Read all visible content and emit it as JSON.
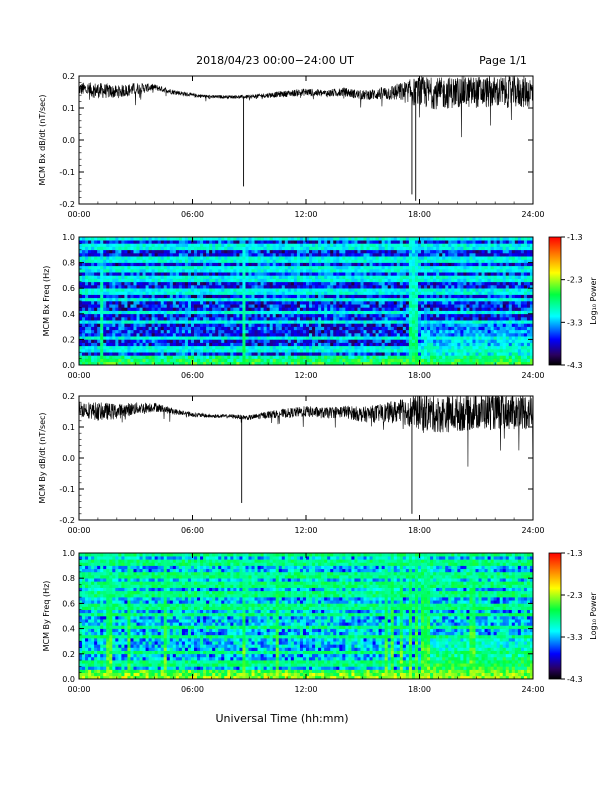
{
  "header": {
    "title": "2018/04/23  00:00−24:00 UT",
    "page": "Page 1/1"
  },
  "footer": {
    "xlabel": "Universal Time (hh:mm)"
  },
  "colorbar": {
    "label": "Log₁₀ Power",
    "ticks": [
      "-1.3",
      "-2.3",
      "-3.3",
      "-4.3"
    ],
    "colormap": "jet"
  },
  "x_ticks": [
    "00:00",
    "06:00",
    "12:00",
    "18:00",
    "24:00"
  ],
  "chart_data": [
    {
      "type": "line",
      "ylabel": "MCM Bx dB/dt (nT/sec)",
      "yticks": [
        "0.2",
        "0.1",
        "0.0",
        "-0.1",
        "-0.2"
      ],
      "xlim_hours": [
        0,
        24
      ],
      "ylim": [
        -0.2,
        0.2
      ],
      "series": [
        {
          "color": "#000000",
          "x": [
            0,
            1,
            2,
            3,
            4,
            5,
            6,
            7,
            8,
            9,
            10,
            11,
            12,
            13,
            14,
            15,
            16,
            17,
            18,
            19,
            20,
            21,
            22,
            23,
            24
          ],
          "y": [
            0.16,
            0.155,
            0.15,
            0.16,
            0.165,
            0.15,
            0.14,
            0.135,
            0.135,
            0.135,
            0.14,
            0.145,
            0.15,
            0.145,
            0.15,
            0.14,
            0.145,
            0.15,
            0.15,
            0.145,
            0.15,
            0.15,
            0.15,
            0.15,
            0.15
          ],
          "spread": [
            0.02,
            0.025,
            0.02,
            0.02,
            0.01,
            0.008,
            0.006,
            0.005,
            0.005,
            0.006,
            0.008,
            0.01,
            0.012,
            0.012,
            0.014,
            0.015,
            0.02,
            0.03,
            0.05,
            0.05,
            0.05,
            0.05,
            0.05,
            0.05,
            0.05
          ]
        }
      ],
      "spikes": [
        {
          "x": 8.7,
          "y": -0.145
        },
        {
          "x": 17.6,
          "y": -0.17
        },
        {
          "x": 17.8,
          "y": -0.19
        }
      ]
    },
    {
      "type": "heatmap",
      "ylabel": "MCM Bx Freq (Hz)",
      "yticks": [
        "1.0",
        "0.8",
        "0.6",
        "0.4",
        "0.2",
        "0.0"
      ],
      "xlim_hours": [
        0,
        24
      ],
      "ylim": [
        0,
        1
      ],
      "zlim": [
        -4.3,
        -1.3
      ],
      "base_level": -3.6,
      "noise_level": -3.9,
      "harmonic_lines_hz": [
        0.05,
        0.1,
        0.15,
        0.2,
        0.25,
        0.3,
        0.35,
        0.4,
        0.45,
        0.5,
        0.55,
        0.6,
        0.65,
        0.7,
        0.75,
        0.8,
        0.85,
        0.9,
        0.95,
        1.0
      ],
      "harmonic_level": -3.1,
      "lowfreq_level": -2.6,
      "vertical_events_hours": [
        1.2,
        8.7,
        17.6,
        17.75
      ],
      "storm_onset_hours": 18.0,
      "storm_level": -2.9
    },
    {
      "type": "line",
      "ylabel": "MCM By dB/dt (nT/sec)",
      "yticks": [
        "0.2",
        "0.1",
        "0.0",
        "-0.1",
        "-0.2"
      ],
      "xlim_hours": [
        0,
        24
      ],
      "ylim": [
        -0.2,
        0.2
      ],
      "series": [
        {
          "color": "#000000",
          "x": [
            0,
            1,
            2,
            3,
            4,
            5,
            6,
            7,
            8,
            9,
            10,
            11,
            12,
            13,
            14,
            15,
            16,
            17,
            18,
            19,
            20,
            21,
            22,
            23,
            24
          ],
          "y": [
            0.16,
            0.15,
            0.15,
            0.16,
            0.165,
            0.15,
            0.14,
            0.135,
            0.135,
            0.13,
            0.14,
            0.145,
            0.15,
            0.145,
            0.15,
            0.14,
            0.145,
            0.15,
            0.15,
            0.14,
            0.145,
            0.15,
            0.15,
            0.15,
            0.15
          ],
          "spread": [
            0.025,
            0.03,
            0.025,
            0.02,
            0.015,
            0.01,
            0.008,
            0.006,
            0.006,
            0.008,
            0.012,
            0.015,
            0.018,
            0.018,
            0.02,
            0.025,
            0.03,
            0.04,
            0.06,
            0.06,
            0.06,
            0.06,
            0.06,
            0.06,
            0.06
          ]
        }
      ],
      "spikes": [
        {
          "x": 8.6,
          "y": -0.145
        },
        {
          "x": 17.6,
          "y": -0.18
        }
      ]
    },
    {
      "type": "heatmap",
      "ylabel": "MCM By Freq (Hz)",
      "yticks": [
        "1.0",
        "0.8",
        "0.6",
        "0.4",
        "0.2",
        "0.0"
      ],
      "xlim_hours": [
        0,
        24
      ],
      "ylim": [
        0,
        1
      ],
      "zlim": [
        -4.3,
        -1.3
      ],
      "base_level": -3.2,
      "noise_level": -3.5,
      "harmonic_lines_hz": [
        0.05,
        0.1,
        0.15,
        0.2,
        0.25,
        0.3,
        0.35,
        0.4,
        0.45,
        0.5,
        0.55,
        0.6,
        0.65,
        0.7,
        0.75,
        0.8,
        0.85,
        0.9,
        0.95,
        1.0
      ],
      "harmonic_level": -2.8,
      "lowfreq_level": -2.3,
      "vertical_events_hours": [
        1.6,
        2.6,
        4.6,
        8.7,
        10.5,
        16.2,
        16.6,
        17.0,
        17.5,
        17.9,
        18.2,
        18.4,
        20.8
      ],
      "storm_onset_hours": 18.0,
      "storm_level": -2.5
    }
  ]
}
